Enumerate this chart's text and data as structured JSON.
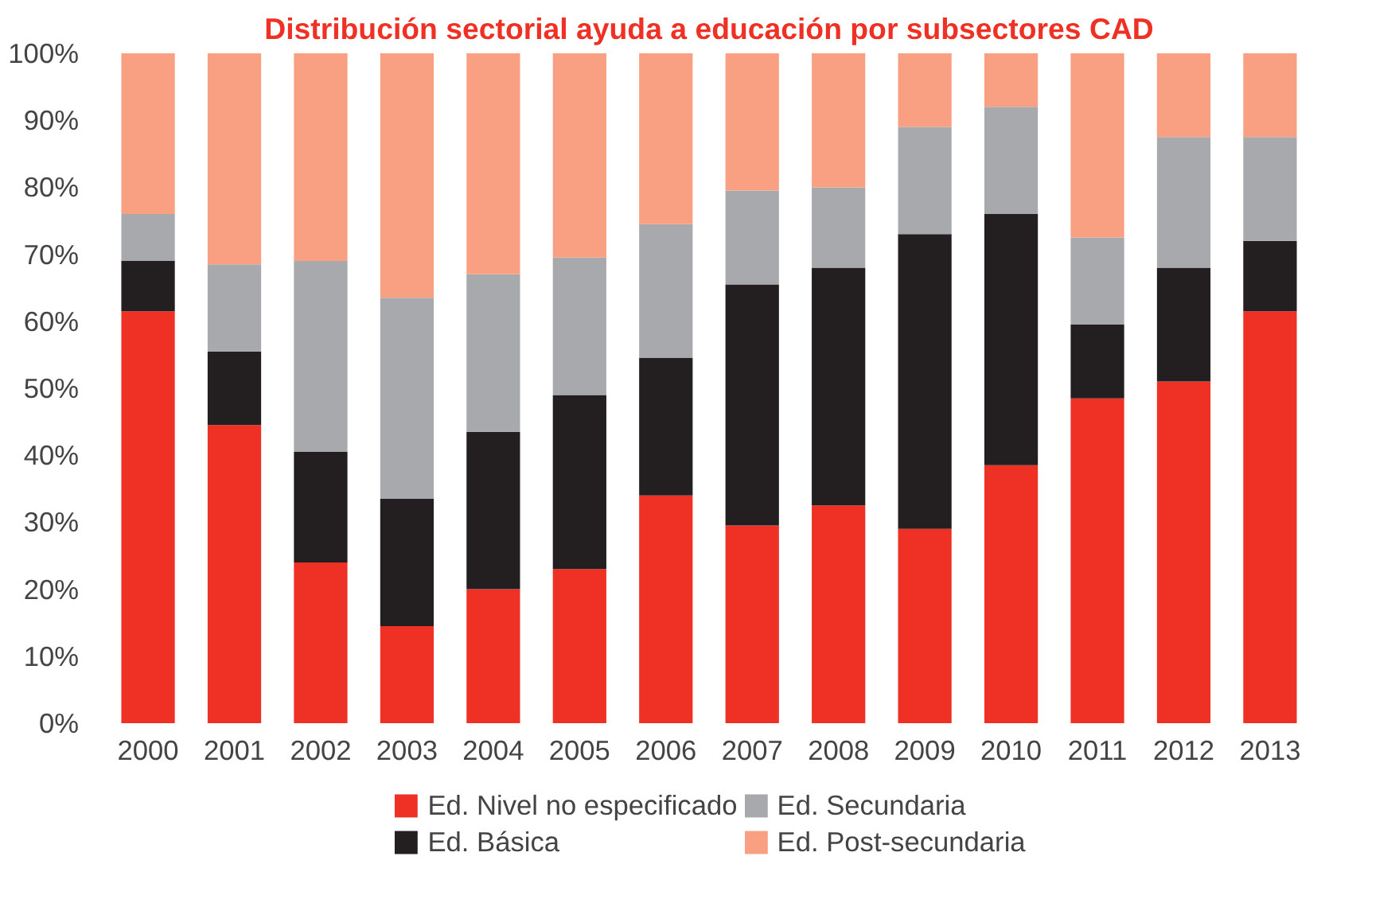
{
  "chart_data": {
    "type": "bar",
    "stacked": true,
    "title": "Distribución sectorial ayuda a educación por subsectores CAD",
    "categories": [
      "2000",
      "2001",
      "2002",
      "2003",
      "2004",
      "2005",
      "2006",
      "2007",
      "2008",
      "2009",
      "2010",
      "2011",
      "2012",
      "2013"
    ],
    "series": [
      {
        "name": "Ed. Nivel no especificado",
        "color": "#ee3124",
        "values": [
          61.5,
          44.5,
          24,
          14.5,
          20,
          23,
          34,
          29.5,
          32.5,
          29,
          38.5,
          48.5,
          51,
          61.5
        ]
      },
      {
        "name": "Ed. Básica",
        "color": "#231f20",
        "values": [
          7.5,
          11,
          16.5,
          19,
          23.5,
          26,
          20.5,
          36,
          35.5,
          44,
          37.5,
          11,
          17,
          10.5
        ]
      },
      {
        "name": "Ed. Secundaria",
        "color": "#a7a9ac",
        "values": [
          7,
          13,
          28.5,
          30,
          23.5,
          20.5,
          20,
          14,
          12,
          16,
          16,
          13,
          19.5,
          15.5
        ]
      },
      {
        "name": "Ed. Post-secundaria",
        "color": "#f9a082",
        "values": [
          24,
          31.5,
          31,
          36.5,
          33,
          30.5,
          25.5,
          20.5,
          20,
          11,
          8,
          27.5,
          12.5,
          12.5
        ]
      }
    ],
    "ylim": [
      0,
      100
    ],
    "yticks": [
      {
        "value": 0,
        "label": "0%"
      },
      {
        "value": 10,
        "label": "10%"
      },
      {
        "value": 20,
        "label": "20%"
      },
      {
        "value": 30,
        "label": "30%"
      },
      {
        "value": 40,
        "label": "40%"
      },
      {
        "value": 50,
        "label": "50%"
      },
      {
        "value": 60,
        "label": "60%"
      },
      {
        "value": 70,
        "label": "70%"
      },
      {
        "value": 80,
        "label": "80%"
      },
      {
        "value": 90,
        "label": "90%"
      },
      {
        "value": 100,
        "label": "100%"
      }
    ],
    "grid": false,
    "legend": "bottom"
  }
}
